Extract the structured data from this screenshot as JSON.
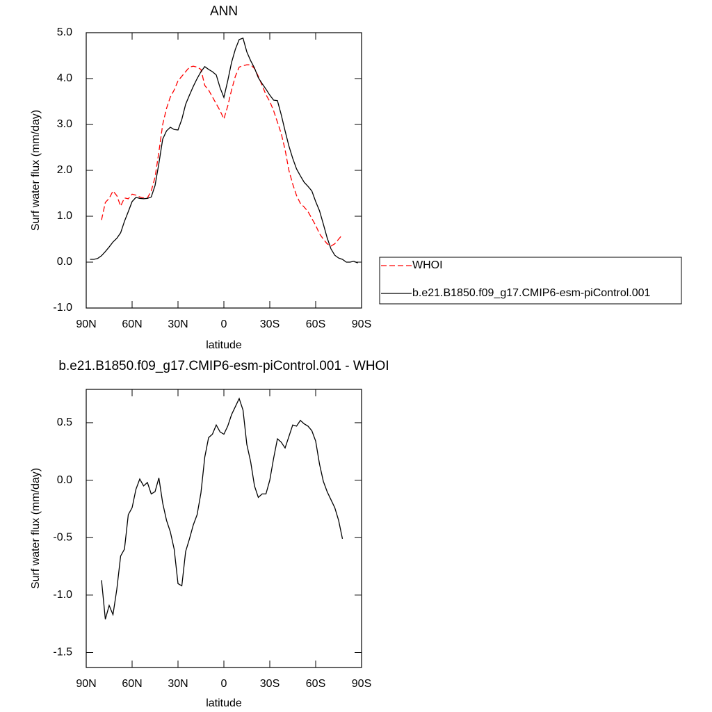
{
  "chart_data": [
    {
      "type": "line",
      "title": "ANN",
      "x_label": "latitude",
      "y_label": "Surf water flux (mm/day)",
      "x": [
        87.5,
        85,
        82.5,
        80,
        77.5,
        75,
        72.5,
        70,
        67.5,
        65,
        62.5,
        60,
        57.5,
        55,
        52.5,
        50,
        47.5,
        45,
        42.5,
        40,
        37.5,
        35,
        32.5,
        30,
        27.5,
        25,
        22.5,
        20,
        17.5,
        15,
        12.5,
        10,
        7.5,
        5,
        2.5,
        0,
        -2.5,
        -5,
        -7.5,
        -10,
        -12.5,
        -15,
        -17.5,
        -20,
        -22.5,
        -25,
        -27.5,
        -30,
        -32.5,
        -35,
        -37.5,
        -40,
        -42.5,
        -45,
        -47.5,
        -50,
        -52.5,
        -55,
        -57.5,
        -60,
        -62.5,
        -65,
        -67.5,
        -70,
        -72.5,
        -75,
        -77.5,
        -80,
        -82.5,
        -85,
        -87.5
      ],
      "series": [
        {
          "name": "WHOI",
          "color": "#ff0000",
          "dash": true,
          "values": [
            null,
            null,
            null,
            0.92,
            1.3,
            1.39,
            1.55,
            1.45,
            1.22,
            1.4,
            1.38,
            1.48,
            1.46,
            1.42,
            1.4,
            1.4,
            1.55,
            1.85,
            2.4,
            3.0,
            3.35,
            3.6,
            3.75,
            3.95,
            4.05,
            4.15,
            4.25,
            4.27,
            4.25,
            4.2,
            3.85,
            3.75,
            3.6,
            3.45,
            3.3,
            3.12,
            3.4,
            3.75,
            4.05,
            4.25,
            4.28,
            4.3,
            4.3,
            4.22,
            4.05,
            3.85,
            3.65,
            3.5,
            3.3,
            3.05,
            2.8,
            2.45,
            2.0,
            1.7,
            1.45,
            1.28,
            1.2,
            1.1,
            0.95,
            0.8,
            0.62,
            0.5,
            0.4,
            0.35,
            0.4,
            0.5,
            0.6,
            null,
            null,
            null,
            null
          ]
        },
        {
          "name": "b.e21.B1850.f09_g17.CMIP6-esm-piControl.001",
          "color": "#000000",
          "dash": false,
          "values": [
            0.06,
            0.06,
            0.08,
            0.14,
            0.23,
            0.33,
            0.44,
            0.52,
            0.64,
            0.89,
            1.1,
            1.32,
            1.41,
            1.39,
            1.38,
            1.39,
            1.42,
            1.67,
            2.15,
            2.68,
            2.86,
            2.94,
            2.89,
            2.88,
            3.11,
            3.44,
            3.64,
            3.83,
            4.0,
            4.15,
            4.26,
            4.2,
            4.15,
            4.08,
            3.8,
            3.59,
            3.95,
            4.35,
            4.64,
            4.85,
            4.88,
            4.58,
            4.39,
            4.23,
            4.02,
            3.89,
            3.77,
            3.64,
            3.53,
            3.52,
            3.21,
            2.86,
            2.53,
            2.26,
            2.03,
            1.88,
            1.74,
            1.65,
            1.55,
            1.32,
            1.12,
            0.83,
            0.53,
            0.29,
            0.15,
            0.09,
            0.06,
            0.0,
            0.0,
            0.02,
            -0.02
          ]
        }
      ],
      "xlim": [
        90,
        -90
      ],
      "xticks": [
        {
          "value": 90,
          "label": "90N"
        },
        {
          "value": 60,
          "label": "60N"
        },
        {
          "value": 30,
          "label": "30N"
        },
        0,
        {
          "value": -30,
          "label": "30S"
        },
        {
          "value": -60,
          "label": "60S"
        },
        {
          "value": -90,
          "label": "90S"
        }
      ],
      "ylim": [
        -1.0,
        5.0
      ],
      "yticks": [
        {
          "value": -1.0,
          "label": "-1.0"
        },
        {
          "value": 0.0,
          "label": "0.0"
        },
        {
          "value": 1.0,
          "label": "1.0"
        },
        {
          "value": 2.0,
          "label": "2.0"
        },
        {
          "value": 3.0,
          "label": "3.0"
        },
        {
          "value": 4.0,
          "label": "4.0"
        },
        {
          "value": 5.0,
          "label": "5.0"
        }
      ],
      "legend": "outside-right"
    },
    {
      "type": "line",
      "title": "b.e21.B1850.f09_g17.CMIP6-esm-piControl.001 - WHOI",
      "x_label": "latitude",
      "y_label": "Surf water flux (mm/day)",
      "x": [
        80,
        77.5,
        75,
        72.5,
        70,
        67.5,
        65,
        62.5,
        60,
        57.5,
        55,
        52.5,
        50,
        47.5,
        45,
        42.5,
        40,
        37.5,
        35,
        32.5,
        30,
        27.5,
        25,
        22.5,
        20,
        17.5,
        15,
        12.5,
        10,
        7.5,
        5,
        2.5,
        0,
        -2.5,
        -5,
        -7.5,
        -10,
        -12.5,
        -15,
        -17.5,
        -20,
        -22.5,
        -25,
        -27.5,
        -30,
        -32.5,
        -35,
        -37.5,
        -40,
        -42.5,
        -45,
        -47.5,
        -50,
        -52.5,
        -55,
        -57.5,
        -60,
        -62.5,
        -65,
        -67.5,
        -70,
        -72.5,
        -75,
        -77.5
      ],
      "color": "#000000",
      "values": [
        -0.87,
        -1.21,
        -1.09,
        -1.17,
        -0.95,
        -0.66,
        -0.6,
        -0.3,
        -0.24,
        -0.08,
        0.01,
        -0.05,
        -0.02,
        -0.12,
        -0.1,
        0.02,
        -0.2,
        -0.35,
        -0.45,
        -0.6,
        -0.9,
        -0.92,
        -0.62,
        -0.51,
        -0.39,
        -0.3,
        -0.11,
        0.2,
        0.37,
        0.4,
        0.48,
        0.42,
        0.4,
        0.47,
        0.57,
        0.64,
        0.71,
        0.61,
        0.31,
        0.16,
        -0.05,
        -0.15,
        -0.12,
        -0.12,
        0.0,
        0.19,
        0.36,
        0.33,
        0.28,
        0.38,
        0.48,
        0.47,
        0.52,
        0.49,
        0.47,
        0.43,
        0.34,
        0.14,
        -0.01,
        -0.1,
        -0.17,
        -0.24,
        -0.35,
        -0.51
      ],
      "xlim": [
        90,
        -90
      ],
      "xticks": [
        {
          "value": 90,
          "label": "90N"
        },
        {
          "value": 60,
          "label": "60N"
        },
        {
          "value": 30,
          "label": "30N"
        },
        0,
        {
          "value": -30,
          "label": "30S"
        },
        {
          "value": -60,
          "label": "60S"
        },
        {
          "value": -90,
          "label": "90S"
        }
      ],
      "ylim": [
        -1.63,
        0.79
      ],
      "yticks": [
        {
          "value": -1.5,
          "label": "-1.5"
        },
        {
          "value": -1.0,
          "label": "-1.0"
        },
        -0.5,
        {
          "value": 0.0,
          "label": "0.0"
        },
        0.5
      ]
    }
  ]
}
